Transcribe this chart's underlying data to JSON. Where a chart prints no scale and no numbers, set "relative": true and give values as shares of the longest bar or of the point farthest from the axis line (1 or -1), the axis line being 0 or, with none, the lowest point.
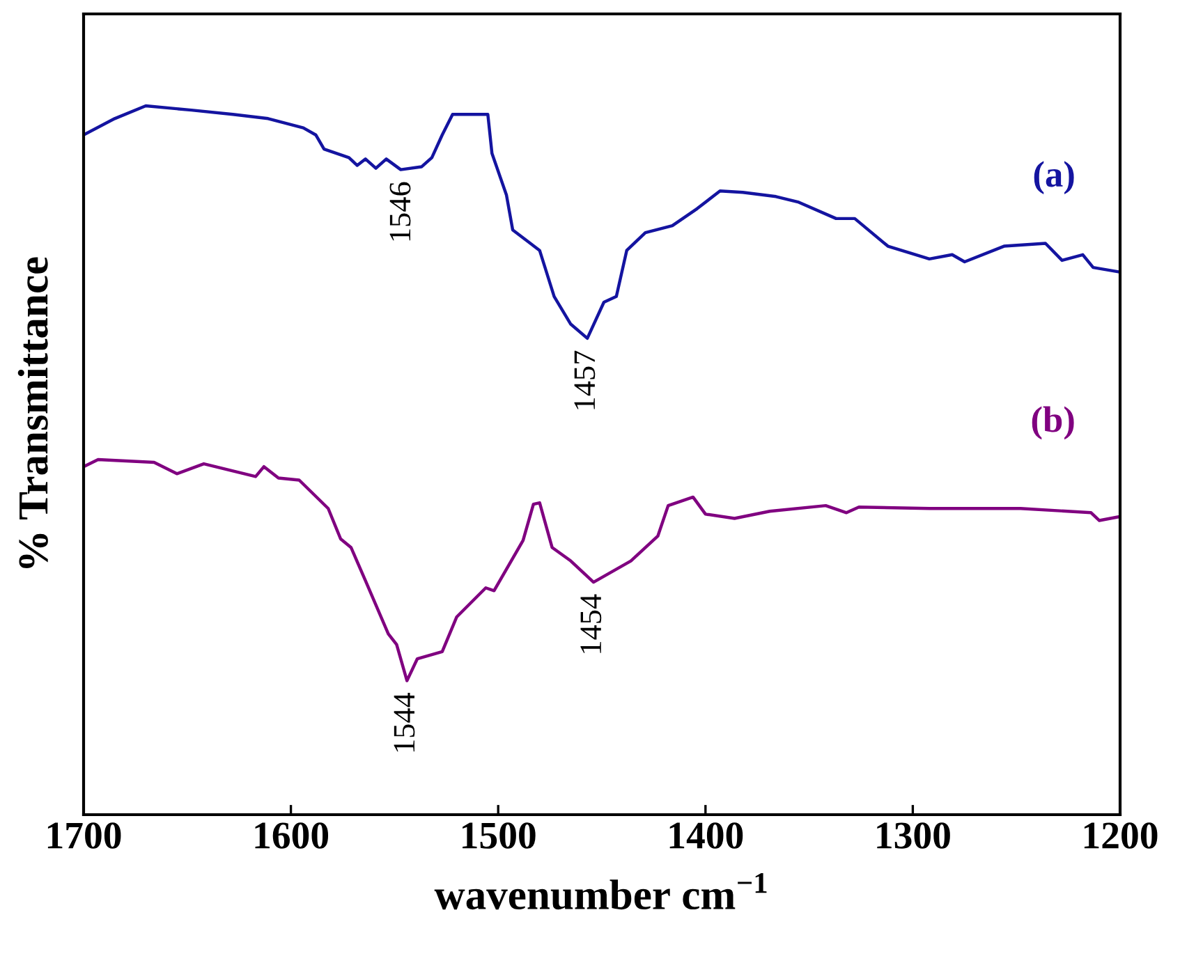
{
  "chart_data": {
    "type": "line",
    "relative": true,
    "xlabel": "wavenumber cm$^{−1}$",
    "ylabel": "% Transmittance",
    "xlim": [
      1700,
      1200
    ],
    "xticks": [
      1700,
      1600,
      1500,
      1400,
      1300,
      1200
    ],
    "tick_labels": "x",
    "series": [
      {
        "name": "(a)",
        "color": "#1414a0",
        "x": [
          1700,
          1685,
          1670,
          1648,
          1628,
          1611,
          1594,
          1588,
          1584,
          1572,
          1568,
          1564,
          1559,
          1554,
          1547,
          1537,
          1532,
          1527,
          1522,
          1505,
          1503,
          1496,
          1493,
          1480,
          1473,
          1465,
          1457,
          1449,
          1443,
          1438,
          1429,
          1416,
          1404,
          1393,
          1382,
          1366,
          1355,
          1337,
          1328,
          1312,
          1301,
          1292,
          1281,
          1275,
          1256,
          1236,
          1228,
          1218,
          1213,
          1201
        ],
        "values": [
          0.959,
          0.982,
          1.0,
          0.994,
          0.988,
          0.982,
          0.969,
          0.959,
          0.939,
          0.927,
          0.916,
          0.925,
          0.912,
          0.925,
          0.91,
          0.914,
          0.927,
          0.959,
          0.988,
          0.988,
          0.933,
          0.874,
          0.825,
          0.796,
          0.731,
          0.692,
          0.672,
          0.723,
          0.731,
          0.796,
          0.821,
          0.831,
          0.855,
          0.88,
          0.878,
          0.872,
          0.864,
          0.841,
          0.841,
          0.802,
          0.792,
          0.784,
          0.79,
          0.78,
          0.802,
          0.806,
          0.782,
          0.79,
          0.772,
          0.766
        ]
      },
      {
        "name": "(b)",
        "color": "#800080",
        "x": [
          1700,
          1693,
          1666,
          1655,
          1642,
          1617,
          1613,
          1606,
          1596,
          1582,
          1576,
          1571,
          1564,
          1553,
          1549,
          1544,
          1539,
          1527,
          1520,
          1506,
          1502,
          1488,
          1483,
          1480,
          1474,
          1465,
          1454,
          1436,
          1423,
          1418,
          1406,
          1400,
          1386,
          1369,
          1342,
          1332,
          1326,
          1292,
          1248,
          1214,
          1210,
          1201
        ],
        "values": [
          0.491,
          0.501,
          0.497,
          0.481,
          0.495,
          0.477,
          0.491,
          0.475,
          0.472,
          0.432,
          0.389,
          0.377,
          0.33,
          0.255,
          0.24,
          0.189,
          0.22,
          0.23,
          0.279,
          0.32,
          0.316,
          0.387,
          0.438,
          0.44,
          0.377,
          0.358,
          0.328,
          0.358,
          0.393,
          0.436,
          0.448,
          0.424,
          0.418,
          0.428,
          0.436,
          0.426,
          0.434,
          0.432,
          0.432,
          0.426,
          0.415,
          0.42
        ]
      }
    ],
    "annotations": [
      {
        "text": "1546",
        "x": 1546,
        "y": 0.91
      },
      {
        "text": "1457",
        "x": 1457,
        "y": 0.672
      },
      {
        "text": "1544",
        "x": 1544,
        "y": 0.189
      },
      {
        "text": "1454",
        "x": 1454,
        "y": 0.328
      }
    ]
  }
}
